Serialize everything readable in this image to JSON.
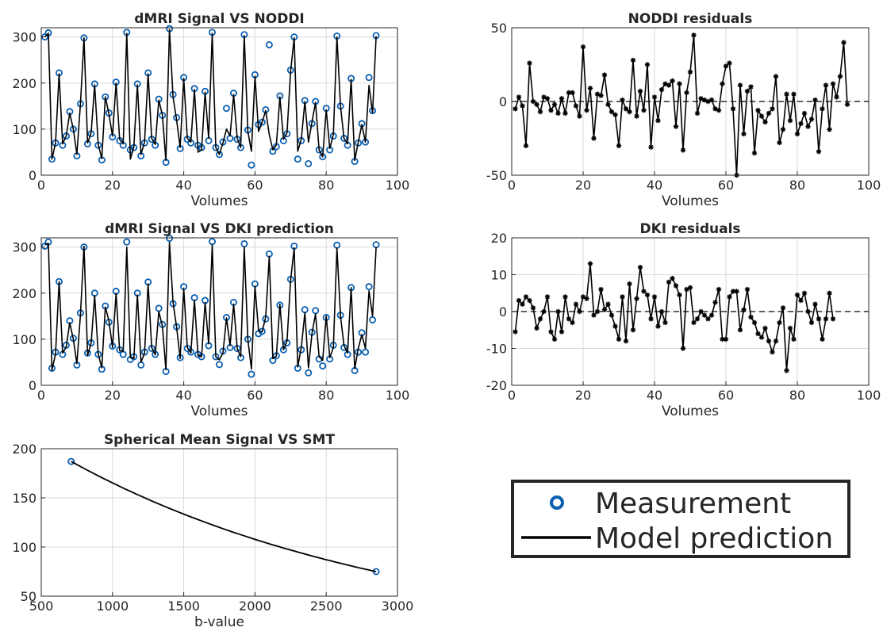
{
  "colors": {
    "measurement": "#0b5fb0",
    "prediction": "#000000",
    "grid": "#d9d9d9",
    "axis": "#262626"
  },
  "legend": {
    "measurement_label": "Measurement",
    "prediction_label": "Model prediction",
    "placement": "bottom-right panel"
  },
  "chart_data": [
    {
      "id": "noddi",
      "type": "line",
      "title": "dMRI Signal VS NODDI",
      "xlabel": "Volumes",
      "ylabel": "",
      "xlim": [
        0,
        100
      ],
      "ylim": [
        0,
        320
      ],
      "xticks": [
        0,
        20,
        40,
        60,
        80,
        100
      ],
      "yticks": [
        0,
        100,
        200,
        300
      ],
      "grid": true,
      "series": [
        {
          "name": "Measurement",
          "style": "markers",
          "values": [
            300,
            309,
            35,
            70,
            222,
            65,
            85,
            138,
            100,
            42,
            155,
            298,
            68,
            90,
            198,
            65,
            33,
            170,
            135,
            83,
            202,
            75,
            65,
            310,
            55,
            60,
            198,
            42,
            70,
            222,
            78,
            65,
            165,
            130,
            28,
            318,
            175,
            125,
            58,
            212,
            78,
            70,
            188,
            65,
            60,
            182,
            75,
            310,
            60,
            45,
            72,
            145,
            80,
            178,
            78,
            60,
            305,
            98,
            22,
            218,
            110,
            115,
            142,
            283,
            52,
            62,
            172,
            75,
            90,
            228,
            300,
            35,
            75,
            162,
            25,
            112,
            160,
            55,
            40,
            145,
            55,
            85,
            302,
            150,
            80,
            65,
            210,
            30,
            70,
            112,
            72,
            212,
            140,
            303
          ]
        },
        {
          "name": "Model prediction",
          "style": "line",
          "values": [
            300,
            308,
            35,
            70,
            220,
            68,
            85,
            135,
            100,
            45,
            155,
            298,
            70,
            92,
            196,
            67,
            36,
            170,
            133,
            85,
            200,
            78,
            68,
            308,
            35,
            62,
            196,
            45,
            72,
            220,
            80,
            67,
            163,
            130,
            32,
            316,
            170,
            120,
            60,
            210,
            80,
            72,
            186,
            50,
            55,
            180,
            80,
            308,
            60,
            45,
            70,
            100,
            85,
            175,
            80,
            60,
            303,
            95,
            52,
            215,
            95,
            115,
            140,
            88,
            55,
            65,
            170,
            78,
            92,
            225,
            298,
            52,
            78,
            160,
            72,
            115,
            158,
            55,
            40,
            142,
            58,
            88,
            300,
            150,
            80,
            68,
            208,
            32,
            72,
            110,
            72,
            195,
            135,
            302
          ]
        }
      ]
    },
    {
      "id": "noddi_res",
      "type": "line",
      "title": "NODDI residuals",
      "xlabel": "Volumes",
      "ylabel": "",
      "xlim": [
        0,
        100
      ],
      "ylim": [
        -50,
        50
      ],
      "xticks": [
        0,
        20,
        40,
        60,
        80,
        100
      ],
      "yticks": [
        -50,
        0,
        50
      ],
      "grid": true,
      "zero_line": "dashed",
      "series": [
        {
          "name": "",
          "style": "line-asterisk",
          "values": [
            -5,
            3,
            -3,
            -30,
            26,
            0,
            -2,
            -7,
            3,
            2,
            -6,
            -2,
            -8,
            2,
            -8,
            6,
            6,
            -3,
            -10,
            37,
            -6,
            9,
            -25,
            5,
            4,
            18,
            -2,
            -7,
            -9,
            -30,
            1,
            -5,
            -7,
            28,
            -10,
            7,
            -6,
            25,
            -31,
            3,
            -13,
            8,
            12,
            11,
            14,
            -17,
            12,
            -33,
            6,
            20,
            45,
            -8,
            2,
            1,
            0,
            1,
            -5,
            -6,
            12,
            24,
            26,
            -5,
            -50,
            11,
            -22,
            7,
            10,
            -35,
            -6,
            -10,
            -14,
            -8,
            -5,
            17,
            -28,
            -19,
            5,
            -13,
            5,
            -22,
            -15,
            -8,
            -17,
            -12,
            1,
            -34,
            -5,
            11,
            -19,
            12,
            3,
            17,
            40,
            -2
          ]
        }
      ]
    },
    {
      "id": "dki",
      "type": "line",
      "title": "dMRI Signal VS DKI prediction",
      "xlabel": "Volumes",
      "ylabel": "",
      "xlim": [
        0,
        100
      ],
      "ylim": [
        0,
        320
      ],
      "xticks": [
        0,
        20,
        40,
        60,
        80,
        100
      ],
      "yticks": [
        0,
        100,
        200,
        300
      ],
      "grid": true,
      "series": [
        {
          "name": "Measurement",
          "style": "markers",
          "values": [
            302,
            311,
            37,
            72,
            225,
            67,
            87,
            140,
            102,
            44,
            157,
            300,
            70,
            92,
            200,
            67,
            35,
            172,
            137,
            85,
            204,
            77,
            67,
            311,
            56,
            62,
            200,
            44,
            72,
            224,
            80,
            67,
            167,
            132,
            30,
            319,
            177,
            127,
            60,
            214,
            80,
            72,
            190,
            67,
            62,
            184,
            86,
            312,
            62,
            45,
            74,
            147,
            82,
            180,
            80,
            60,
            307,
            100,
            24,
            220,
            112,
            117,
            144,
            285,
            54,
            64,
            174,
            77,
            92,
            230,
            302,
            37,
            77,
            164,
            27,
            115,
            162,
            57,
            42,
            147,
            57,
            87,
            304,
            152,
            82,
            67,
            212,
            32,
            72,
            114,
            72,
            214,
            142,
            305
          ]
        },
        {
          "name": "Model prediction",
          "style": "line",
          "values": [
            305,
            308,
            33,
            68,
            225,
            70,
            83,
            136,
            100,
            47,
            153,
            302,
            65,
            92,
            195,
            68,
            38,
            170,
            140,
            82,
            200,
            75,
            74,
            300,
            60,
            58,
            196,
            50,
            70,
            220,
            82,
            66,
            160,
            128,
            34,
            310,
            180,
            126,
            58,
            210,
            82,
            70,
            185,
            65,
            62,
            180,
            90,
            305,
            62,
            55,
            70,
            146,
            86,
            176,
            80,
            62,
            300,
            100,
            35,
            215,
            118,
            116,
            148,
            280,
            58,
            63,
            176,
            77,
            96,
            228,
            298,
            40,
            82,
            158,
            38,
            112,
            155,
            62,
            54,
            150,
            60,
            82,
            298,
            150,
            86,
            70,
            212,
            36,
            80,
            110,
            80,
            205,
            150,
            300
          ]
        }
      ]
    },
    {
      "id": "dki_res",
      "type": "line",
      "title": "DKI residuals",
      "xlabel": "Volumes",
      "ylabel": "",
      "xlim": [
        0,
        100
      ],
      "ylim": [
        -20,
        20
      ],
      "xticks": [
        0,
        20,
        40,
        60,
        80,
        100
      ],
      "yticks": [
        -20,
        -10,
        0,
        10,
        20
      ],
      "grid": true,
      "zero_line": "dashed",
      "series": [
        {
          "name": "",
          "style": "line-asterisk",
          "values": [
            -5.5,
            3,
            2,
            4,
            3,
            1,
            -4.5,
            -2,
            0,
            4,
            -5.5,
            -7.5,
            0,
            -5.5,
            4,
            -2,
            -3,
            2,
            0,
            4,
            3.5,
            13,
            -1,
            0,
            6,
            0.5,
            2,
            -1,
            -4,
            -7.5,
            4,
            -8,
            7.5,
            -5,
            3.5,
            12,
            5.5,
            4.5,
            -2,
            4,
            -4,
            0,
            -3,
            8,
            9,
            7,
            4.5,
            -10,
            6,
            6.5,
            -3,
            -2,
            0,
            -1,
            -2,
            -1,
            2.5,
            6,
            -7.5,
            -7.5,
            4,
            5.5,
            5.5,
            -5,
            0.5,
            6,
            -1.5,
            -3,
            -6,
            -7,
            -4.5,
            -8,
            -11,
            -8,
            -3,
            1,
            -16,
            -4.5,
            -7.5,
            4.5,
            3,
            5,
            0,
            -3,
            2,
            -2,
            -7.5,
            -2,
            5,
            -2
          ]
        }
      ]
    },
    {
      "id": "smt",
      "type": "line",
      "title": "Spherical Mean Signal VS SMT",
      "xlabel": "b-value",
      "ylabel": "",
      "xlim": [
        500,
        3000
      ],
      "ylim": [
        50,
        200
      ],
      "xticks": [
        500,
        1000,
        1500,
        2000,
        2500,
        3000
      ],
      "yticks": [
        50,
        100,
        150,
        200
      ],
      "grid": true,
      "series": [
        {
          "name": "Measurement",
          "style": "markers",
          "x": [
            710,
            2850
          ],
          "y": [
            187,
            75
          ]
        },
        {
          "name": "Model prediction",
          "style": "smooth-line",
          "x": [
            710,
            2850
          ],
          "y": [
            187,
            75
          ]
        }
      ]
    }
  ]
}
